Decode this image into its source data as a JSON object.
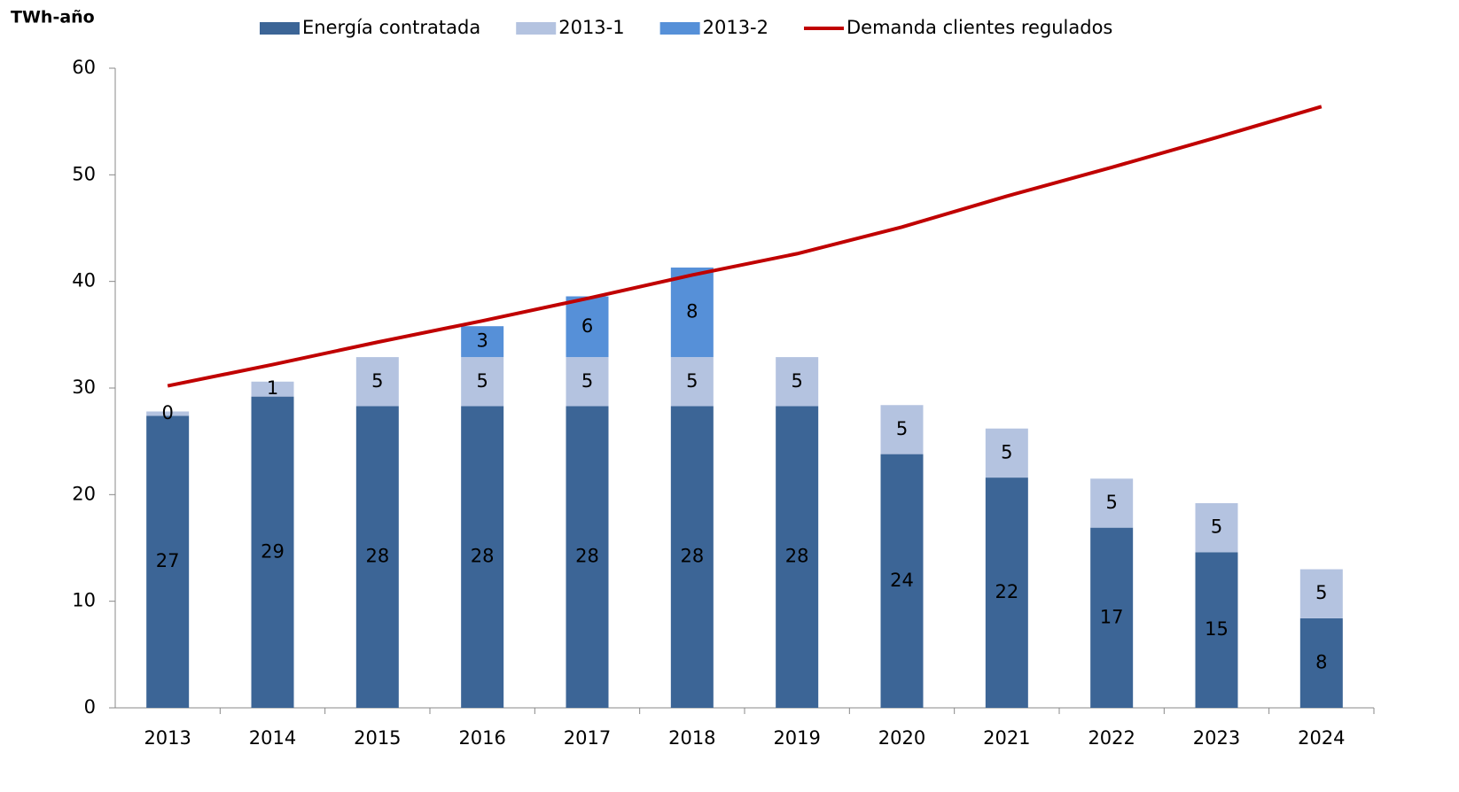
{
  "chart_data": {
    "type": "bar",
    "y_label": "TWh-año",
    "categories": [
      "2013",
      "2014",
      "2015",
      "2016",
      "2017",
      "2018",
      "2019",
      "2020",
      "2021",
      "2022",
      "2023",
      "2024"
    ],
    "series": [
      {
        "name": "Energía contratada",
        "color": "#3c6596",
        "values": [
          27.4,
          29.2,
          28.3,
          28.3,
          28.3,
          28.3,
          28.3,
          23.8,
          21.6,
          16.9,
          14.6,
          8.4
        ],
        "value_labels": [
          "27",
          "29",
          "28",
          "28",
          "28",
          "28",
          "28",
          "24",
          "22",
          "17",
          "15",
          "8"
        ]
      },
      {
        "name": "2013-1",
        "color": "#b4c3e0",
        "values": [
          0.4,
          1.4,
          4.6,
          4.6,
          4.6,
          4.6,
          4.6,
          4.6,
          4.6,
          4.6,
          4.6,
          4.6
        ],
        "value_labels": [
          "0",
          "1",
          "5",
          "5",
          "5",
          "5",
          "5",
          "5",
          "5",
          "5",
          "5",
          "5"
        ]
      },
      {
        "name": "2013-2",
        "color": "#5690d8",
        "values": [
          null,
          null,
          null,
          2.9,
          5.7,
          8.4,
          null,
          null,
          null,
          null,
          null,
          null
        ],
        "value_labels": [
          null,
          null,
          null,
          "3",
          "6",
          "8",
          null,
          null,
          null,
          null,
          null,
          null
        ]
      },
      {
        "name": "Demanda clientes regulados",
        "type": "line",
        "color": "#c00000",
        "values": [
          30.2,
          32.2,
          34.3,
          36.3,
          38.4,
          40.6,
          42.6,
          45.1,
          48.0,
          50.7,
          53.5,
          56.4
        ]
      }
    ],
    "ylim": [
      0,
      60
    ],
    "yticks": [
      0,
      10,
      20,
      30,
      40,
      50,
      60
    ],
    "grid": false
  }
}
